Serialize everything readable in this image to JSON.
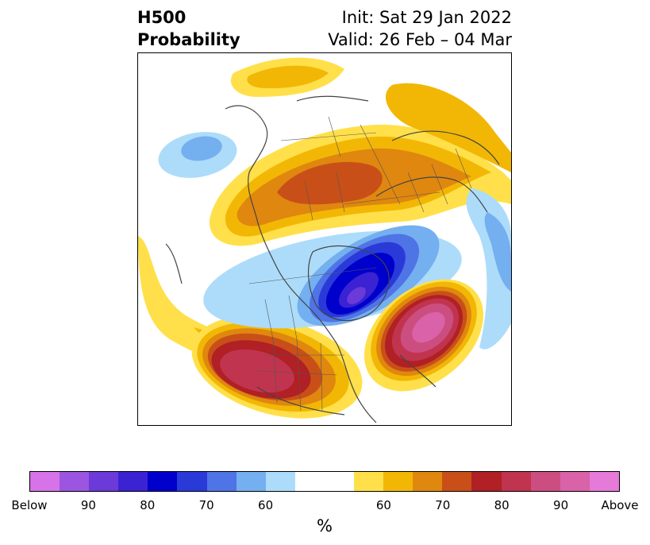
{
  "title": {
    "left_line1": "H500",
    "left_line2": "Probability",
    "right_line1": "Init: Sat 29 Jan 2022",
    "right_line2": "Valid: 26 Feb – 04 Mar"
  },
  "map": {
    "type": "polar stereographic probability map",
    "features": [
      "above-normal probability maxima over western/central United States",
      "above-normal probability maxima over the western North Atlantic",
      "below-normal probability minimum over Hudson Bay / eastern Canada",
      "above-normal probability band across Siberia / Arctic",
      "below-normal probability area over the North Pacific"
    ]
  },
  "colorbar": {
    "colors": [
      "#d773e8",
      "#9b55e0",
      "#6b3ad9",
      "#3b22d2",
      "#0000cc",
      "#2a3ad9",
      "#4f74e6",
      "#74aff0",
      "#acdcfa",
      "#ffffff",
      "#ffffff",
      "#ffe04a",
      "#f2b705",
      "#e0870f",
      "#c85018",
      "#b02024",
      "#c0344f",
      "#cc4e80",
      "#d962a8",
      "#e67ad8"
    ],
    "tick_labels": [
      "Below",
      "90",
      "80",
      "70",
      "60",
      "",
      "60",
      "70",
      "80",
      "90",
      "Above"
    ],
    "unit": "%"
  }
}
